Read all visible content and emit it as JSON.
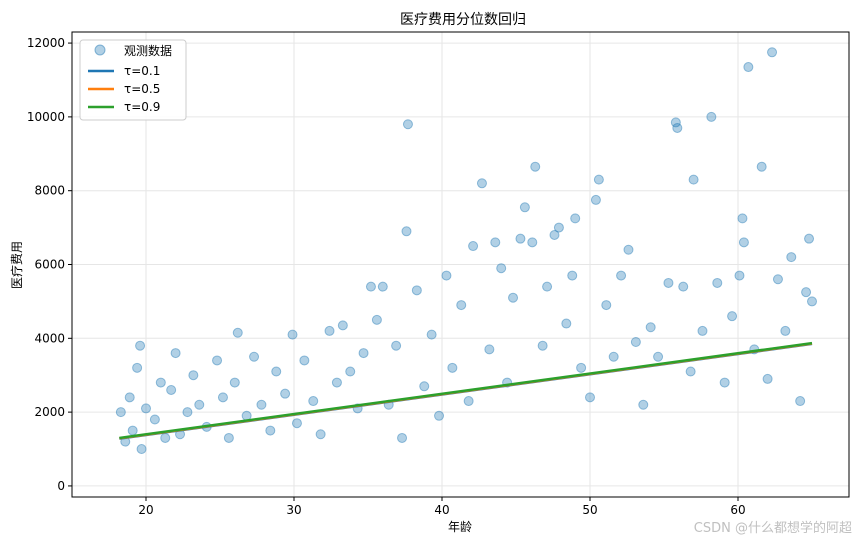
{
  "chart_data": {
    "type": "scatter",
    "title": "医疗费用分位数回归",
    "xlabel": "年龄",
    "ylabel": "医疗费用",
    "xlim": [
      15,
      67.5
    ],
    "ylim": [
      -300,
      12300
    ],
    "xticks": [
      20,
      30,
      40,
      50,
      60
    ],
    "yticks": [
      0,
      2000,
      4000,
      6000,
      8000,
      10000,
      12000
    ],
    "grid": true,
    "legend_position": "top-left",
    "legend": [
      "观测数据",
      "τ=0.1",
      "τ=0.5",
      "τ=0.9"
    ],
    "scatter_series": {
      "name": "观测数据",
      "color": "#1f77b4",
      "alpha": 0.35,
      "points": [
        [
          18.3,
          2000
        ],
        [
          18.6,
          1200
        ],
        [
          18.9,
          2400
        ],
        [
          19.1,
          1500
        ],
        [
          19.4,
          3200
        ],
        [
          19.6,
          3800
        ],
        [
          19.7,
          1000
        ],
        [
          20.0,
          2100
        ],
        [
          20.6,
          1800
        ],
        [
          21.0,
          2800
        ],
        [
          21.3,
          1300
        ],
        [
          21.7,
          2600
        ],
        [
          22.0,
          3600
        ],
        [
          22.3,
          1400
        ],
        [
          22.8,
          2000
        ],
        [
          23.2,
          3000
        ],
        [
          23.6,
          2200
        ],
        [
          24.1,
          1600
        ],
        [
          24.8,
          3400
        ],
        [
          25.2,
          2400
        ],
        [
          25.6,
          1300
        ],
        [
          26.0,
          2800
        ],
        [
          26.2,
          4150
        ],
        [
          26.8,
          1900
        ],
        [
          27.3,
          3500
        ],
        [
          27.8,
          2200
        ],
        [
          28.4,
          1500
        ],
        [
          28.8,
          3100
        ],
        [
          29.4,
          2500
        ],
        [
          29.9,
          4100
        ],
        [
          30.2,
          1700
        ],
        [
          30.7,
          3400
        ],
        [
          31.3,
          2300
        ],
        [
          31.8,
          1400
        ],
        [
          32.4,
          4200
        ],
        [
          32.9,
          2800
        ],
        [
          33.3,
          4350
        ],
        [
          33.8,
          3100
        ],
        [
          34.3,
          2100
        ],
        [
          34.7,
          3600
        ],
        [
          35.2,
          5400
        ],
        [
          35.6,
          4500
        ],
        [
          36.0,
          5400
        ],
        [
          36.4,
          2200
        ],
        [
          36.9,
          3800
        ],
        [
          37.3,
          1300
        ],
        [
          37.6,
          6900
        ],
        [
          37.7,
          9800
        ],
        [
          38.3,
          5300
        ],
        [
          38.8,
          2700
        ],
        [
          39.3,
          4100
        ],
        [
          39.8,
          1900
        ],
        [
          40.3,
          5700
        ],
        [
          40.7,
          3200
        ],
        [
          41.3,
          4900
        ],
        [
          41.8,
          2300
        ],
        [
          42.1,
          6500
        ],
        [
          42.7,
          8200
        ],
        [
          43.2,
          3700
        ],
        [
          43.6,
          6600
        ],
        [
          44.0,
          5900
        ],
        [
          44.4,
          2800
        ],
        [
          44.8,
          5100
        ],
        [
          45.3,
          6700
        ],
        [
          45.6,
          7550
        ],
        [
          46.1,
          6600
        ],
        [
          46.3,
          8650
        ],
        [
          46.8,
          3800
        ],
        [
          47.1,
          5400
        ],
        [
          47.6,
          6800
        ],
        [
          47.9,
          7000
        ],
        [
          48.4,
          4400
        ],
        [
          48.8,
          5700
        ],
        [
          49.0,
          7250
        ],
        [
          49.4,
          3200
        ],
        [
          50.0,
          2400
        ],
        [
          50.4,
          7750
        ],
        [
          50.6,
          8300
        ],
        [
          51.1,
          4900
        ],
        [
          51.6,
          3500
        ],
        [
          52.1,
          5700
        ],
        [
          52.6,
          6400
        ],
        [
          53.1,
          3900
        ],
        [
          53.6,
          2200
        ],
        [
          54.1,
          4300
        ],
        [
          54.6,
          3500
        ],
        [
          55.3,
          5500
        ],
        [
          55.8,
          9850
        ],
        [
          55.9,
          9700
        ],
        [
          56.3,
          5400
        ],
        [
          56.8,
          3100
        ],
        [
          57.0,
          8300
        ],
        [
          57.6,
          4200
        ],
        [
          58.2,
          10000
        ],
        [
          58.6,
          5500
        ],
        [
          59.1,
          2800
        ],
        [
          59.6,
          4600
        ],
        [
          60.1,
          5700
        ],
        [
          60.3,
          7250
        ],
        [
          60.4,
          6600
        ],
        [
          60.7,
          11350
        ],
        [
          61.1,
          3700
        ],
        [
          61.6,
          8650
        ],
        [
          62.0,
          2900
        ],
        [
          62.3,
          11750
        ],
        [
          62.7,
          5600
        ],
        [
          63.2,
          4200
        ],
        [
          63.6,
          6200
        ],
        [
          64.2,
          2300
        ],
        [
          64.6,
          5250
        ],
        [
          64.8,
          6700
        ],
        [
          65.0,
          5000
        ]
      ]
    },
    "series": [
      {
        "name": "τ=0.1",
        "color": "#1f77b4",
        "x": [
          18.2,
          65.0
        ],
        "y": [
          1280,
          3850
        ]
      },
      {
        "name": "τ=0.5",
        "color": "#ff7f0e",
        "x": [
          18.2,
          65.0
        ],
        "y": [
          1290,
          3860
        ]
      },
      {
        "name": "τ=0.9",
        "color": "#2ca02c",
        "x": [
          18.2,
          65.0
        ],
        "y": [
          1300,
          3870
        ]
      }
    ]
  },
  "watermark": "CSDN @什么都想学的阿超"
}
